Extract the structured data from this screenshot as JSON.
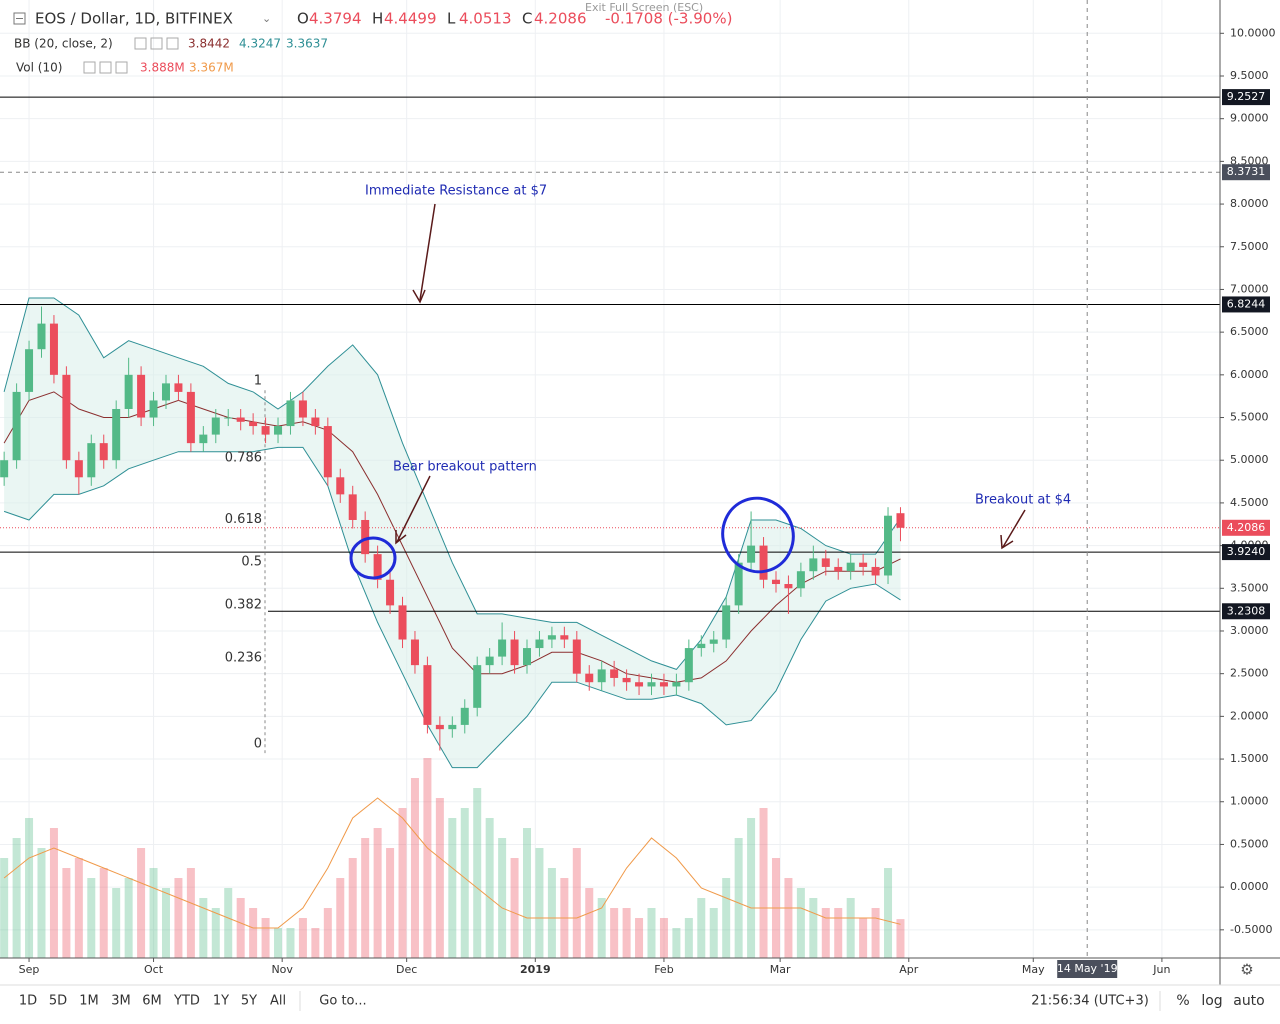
{
  "chart_data": {
    "type": "candlestick",
    "legend": {
      "symbol": "EOS / Dollar, 1D, BITFINEX",
      "ohlc_labels": [
        "O",
        "H",
        "L",
        "C"
      ],
      "change": "-0.1708 (-3.90%)",
      "bb": "BB (20, close, 2)",
      "vol": "Vol (10)",
      "vol_values": [
        "3.888M",
        "3.367M"
      ]
    },
    "exit_hint": "Exit Full Screen (ESC)",
    "colors": {
      "up": "#53b987",
      "down": "#eb4d5c",
      "band": "#2e8f95",
      "basis": "#8b2f2f",
      "volume_ma": "#f09a4a",
      "level": "#000000"
    },
    "xlim": [
      -7,
      287
    ],
    "xticks": [
      {
        "value": 0,
        "label": "Sep"
      },
      {
        "value": 30,
        "label": "Oct"
      },
      {
        "value": 61,
        "label": "Nov"
      },
      {
        "value": 91,
        "label": "Dec"
      },
      {
        "value": 122,
        "label": "2019"
      },
      {
        "value": 153,
        "label": "Feb"
      },
      {
        "value": 181,
        "label": "Mar"
      },
      {
        "value": 212,
        "label": "Apr"
      },
      {
        "value": 242,
        "label": "May"
      },
      {
        "value": 273,
        "label": "Jun"
      }
    ],
    "ylim": [
      -0.83,
      10.39
    ],
    "yticks": [
      {
        "value": 10,
        "label": "10.0000"
      },
      {
        "value": 9.5,
        "label": "9.5000"
      },
      {
        "value": 9,
        "label": "9.0000"
      },
      {
        "value": 8.5,
        "label": "8.5000"
      },
      {
        "value": 8,
        "label": "8.0000"
      },
      {
        "value": 7.5,
        "label": "7.5000"
      },
      {
        "value": 7,
        "label": "7.0000"
      },
      {
        "value": 6.5,
        "label": "6.5000"
      },
      {
        "value": 6,
        "label": "6.0000"
      },
      {
        "value": 5.5,
        "label": "5.5000"
      },
      {
        "value": 5,
        "label": "5.0000"
      },
      {
        "value": 4.5,
        "label": "4.5000"
      },
      {
        "value": 4,
        "label": "4.0000"
      },
      {
        "value": 3.5,
        "label": "3.5000"
      },
      {
        "value": 3,
        "label": "3.0000"
      },
      {
        "value": 2.5,
        "label": "2.5000"
      },
      {
        "value": 2,
        "label": "2.0000"
      },
      {
        "value": 1.5,
        "label": "1.5000"
      },
      {
        "value": 1,
        "label": "1.0000"
      },
      {
        "value": 0.5,
        "label": "0.5000"
      },
      {
        "value": 0,
        "label": "0.0000"
      },
      {
        "value": -0.5,
        "label": "-0.5000"
      }
    ],
    "grid": true,
    "volume_ylim": [
      0,
      40
    ],
    "candles": {
      "x": [
        -6,
        -3,
        0,
        3,
        6,
        9,
        12,
        15,
        18,
        21,
        24,
        27,
        30,
        33,
        36,
        39,
        42,
        45,
        48,
        51,
        54,
        57,
        60,
        63,
        66,
        69,
        72,
        75,
        78,
        81,
        84,
        87,
        90,
        93,
        96,
        99,
        102,
        105,
        108,
        111,
        114,
        117,
        120,
        123,
        126,
        129,
        132,
        135,
        138,
        141,
        144,
        147,
        150,
        153,
        156,
        159,
        162,
        165,
        168,
        171,
        174,
        177,
        180,
        183,
        186,
        189,
        192,
        195,
        198,
        201,
        204,
        207,
        210
      ],
      "open": [
        4.8,
        5.0,
        5.8,
        6.3,
        6.6,
        6.0,
        5.0,
        4.8,
        5.2,
        5.0,
        5.6,
        6.0,
        5.5,
        5.7,
        5.9,
        5.8,
        5.2,
        5.3,
        5.5,
        5.5,
        5.45,
        5.4,
        5.3,
        5.4,
        5.7,
        5.5,
        5.4,
        4.8,
        4.6,
        4.3,
        3.9,
        3.6,
        3.3,
        2.9,
        2.6,
        1.9,
        1.85,
        1.9,
        2.1,
        2.6,
        2.7,
        2.9,
        2.6,
        2.8,
        2.9,
        2.95,
        2.9,
        2.5,
        2.4,
        2.55,
        2.45,
        2.4,
        2.35,
        2.4,
        2.35,
        2.4,
        2.8,
        2.85,
        2.9,
        3.3,
        3.8,
        4.0,
        3.6,
        3.55,
        3.5,
        3.7,
        3.85,
        3.75,
        3.7,
        3.8,
        3.75,
        3.65,
        4.3794
      ],
      "high": [
        5.1,
        5.9,
        6.4,
        6.8,
        6.7,
        6.1,
        5.1,
        5.3,
        5.3,
        5.7,
        6.2,
        6.1,
        5.8,
        6.0,
        6.0,
        5.9,
        5.4,
        5.6,
        5.6,
        5.6,
        5.55,
        5.5,
        5.5,
        5.8,
        5.8,
        5.6,
        5.5,
        4.9,
        4.7,
        4.4,
        4.0,
        3.7,
        3.4,
        3.0,
        2.7,
        2.0,
        2.0,
        2.2,
        2.7,
        2.8,
        3.1,
        3.0,
        2.9,
        3.0,
        3.05,
        3.05,
        3.0,
        2.6,
        2.65,
        2.65,
        2.55,
        2.5,
        2.5,
        2.5,
        2.5,
        2.9,
        2.95,
        3.0,
        3.4,
        3.9,
        4.4,
        4.1,
        3.7,
        3.65,
        3.8,
        4.0,
        3.95,
        3.85,
        3.9,
        3.9,
        3.85,
        4.45,
        4.4499
      ],
      "low": [
        4.7,
        4.9,
        5.7,
        6.2,
        5.9,
        4.9,
        4.6,
        4.7,
        4.9,
        4.9,
        5.5,
        5.4,
        5.4,
        5.6,
        5.7,
        5.1,
        5.1,
        5.2,
        5.4,
        5.35,
        5.3,
        5.2,
        5.2,
        5.3,
        5.4,
        5.3,
        4.7,
        4.5,
        4.2,
        3.8,
        3.5,
        3.2,
        2.8,
        2.5,
        1.8,
        1.6,
        1.75,
        1.8,
        2.0,
        2.5,
        2.6,
        2.5,
        2.5,
        2.7,
        2.8,
        2.8,
        2.4,
        2.3,
        2.3,
        2.35,
        2.3,
        2.25,
        2.25,
        2.25,
        2.25,
        2.3,
        2.7,
        2.75,
        2.8,
        3.2,
        3.7,
        3.5,
        3.45,
        3.2,
        3.4,
        3.6,
        3.65,
        3.6,
        3.6,
        3.65,
        3.55,
        3.55,
        4.0513
      ],
      "close": [
        5.0,
        5.8,
        6.3,
        6.6,
        6.0,
        5.0,
        4.8,
        5.2,
        5.0,
        5.6,
        6.0,
        5.5,
        5.7,
        5.9,
        5.8,
        5.2,
        5.3,
        5.5,
        5.5,
        5.45,
        5.4,
        5.3,
        5.4,
        5.7,
        5.5,
        5.4,
        4.8,
        4.6,
        4.3,
        3.9,
        3.6,
        3.3,
        2.9,
        2.6,
        1.9,
        1.85,
        1.9,
        2.1,
        2.6,
        2.7,
        2.9,
        2.6,
        2.8,
        2.9,
        2.95,
        2.9,
        2.5,
        2.4,
        2.55,
        2.45,
        2.4,
        2.35,
        2.4,
        2.35,
        2.4,
        2.8,
        2.85,
        2.9,
        3.3,
        3.8,
        4.0,
        3.6,
        3.55,
        3.5,
        3.7,
        3.85,
        3.75,
        3.7,
        3.8,
        3.75,
        3.65,
        4.35,
        4.2086
      ],
      "volume": [
        10,
        12,
        14,
        11,
        13,
        9,
        10,
        8,
        9,
        7,
        8,
        11,
        9,
        7,
        8,
        9,
        6,
        5,
        7,
        6,
        5,
        4,
        3,
        3,
        4,
        3,
        5,
        8,
        10,
        12,
        13,
        11,
        15,
        18,
        20,
        16,
        14,
        15,
        17,
        14,
        12,
        10,
        13,
        11,
        9,
        8,
        11,
        7,
        6,
        5,
        5,
        4,
        5,
        4,
        3,
        4,
        6,
        5,
        8,
        12,
        14,
        15,
        10,
        8,
        7,
        6,
        5,
        5,
        6,
        4,
        5,
        9,
        3.888
      ]
    },
    "bb": {
      "x": [
        -6,
        0,
        6,
        12,
        18,
        24,
        30,
        36,
        42,
        48,
        54,
        60,
        66,
        72,
        78,
        84,
        90,
        96,
        102,
        108,
        114,
        120,
        126,
        132,
        138,
        144,
        150,
        156,
        162,
        168,
        174,
        180,
        186,
        192,
        198,
        204,
        210
      ],
      "upper": [
        5.8,
        6.9,
        6.9,
        6.7,
        6.2,
        6.4,
        6.3,
        6.2,
        6.1,
        5.9,
        5.8,
        5.6,
        5.8,
        6.1,
        6.35,
        6.0,
        5.2,
        4.5,
        3.8,
        3.2,
        3.2,
        3.15,
        3.1,
        3.1,
        2.95,
        2.8,
        2.65,
        2.55,
        2.9,
        3.4,
        4.3,
        4.3,
        4.2,
        4.0,
        3.9,
        3.9,
        4.3247
      ],
      "basis": [
        5.2,
        5.7,
        5.8,
        5.6,
        5.5,
        5.5,
        5.6,
        5.7,
        5.6,
        5.5,
        5.45,
        5.4,
        5.45,
        5.35,
        5.1,
        4.6,
        4.0,
        3.4,
        2.8,
        2.5,
        2.5,
        2.6,
        2.75,
        2.75,
        2.65,
        2.5,
        2.45,
        2.4,
        2.45,
        2.65,
        3.0,
        3.3,
        3.55,
        3.7,
        3.7,
        3.7,
        3.8442
      ],
      "lower": [
        4.4,
        4.3,
        4.6,
        4.6,
        4.7,
        4.9,
        5.0,
        5.1,
        5.1,
        5.1,
        5.1,
        5.15,
        5.15,
        4.7,
        3.8,
        3.1,
        2.5,
        1.9,
        1.4,
        1.4,
        1.7,
        2.0,
        2.4,
        2.4,
        2.3,
        2.2,
        2.2,
        2.25,
        2.15,
        1.9,
        1.95,
        2.3,
        2.9,
        3.35,
        3.5,
        3.55,
        3.3637
      ],
      "volume_ma": [
        8,
        10,
        11,
        10,
        9,
        8,
        7,
        6,
        5,
        4,
        3,
        3,
        5,
        9,
        14,
        16,
        14,
        11,
        9,
        7,
        5,
        4,
        4,
        4,
        5,
        9,
        12,
        10,
        7,
        6,
        5,
        5,
        5,
        4,
        4,
        4,
        3.367
      ]
    },
    "levels": [
      9.2527,
      6.8244,
      {
        "value": 3.924,
        "label": "3.9240"
      },
      3.2308
    ],
    "crosshair": {
      "y": 8.3731,
      "x": {
        "value": 255,
        "label": "14 May '19"
      }
    },
    "fib": [
      {
        "label": "1",
        "value": 5.82
      },
      {
        "label": "0.786",
        "value": 4.92
      },
      {
        "label": "0.618",
        "value": 4.2
      },
      {
        "label": "0.5",
        "value": 3.7
      },
      {
        "label": "0.382",
        "value": 3.2
      },
      {
        "label": "0.236",
        "value": 2.58
      },
      {
        "label": "0",
        "value": 1.57
      }
    ],
    "annotations": [
      "Immediate Resistance at $7",
      "Bear breakout pattern",
      "Breakout at $4"
    ]
  },
  "toolbar": {
    "ranges": [
      "1D",
      "5D",
      "1M",
      "3M",
      "6M",
      "YTD",
      "1Y",
      "5Y",
      "All"
    ],
    "goto": "Go to...",
    "clock": "21:56:34 (UTC+3)",
    "options": [
      "%",
      "log",
      "auto"
    ]
  }
}
